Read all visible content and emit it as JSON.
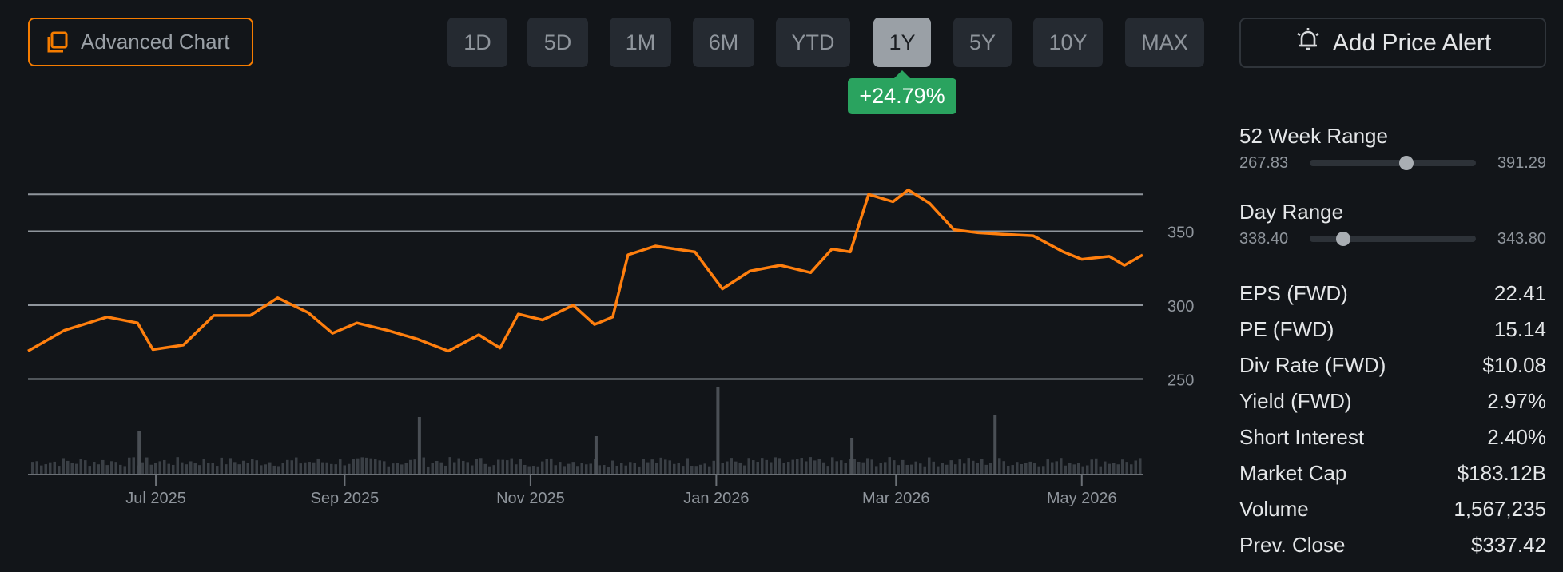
{
  "toolbar": {
    "advanced_chart_label": "Advanced Chart",
    "ranges": [
      {
        "label": "1D",
        "active": false
      },
      {
        "label": "5D",
        "active": false
      },
      {
        "label": "1M",
        "active": false
      },
      {
        "label": "6M",
        "active": false
      },
      {
        "label": "YTD",
        "active": false
      },
      {
        "label": "1Y",
        "active": true
      },
      {
        "label": "5Y",
        "active": false
      },
      {
        "label": "10Y",
        "active": false
      },
      {
        "label": "MAX",
        "active": false
      }
    ],
    "change_badge": "+24.79%",
    "add_alert_label": "Add Price Alert"
  },
  "colors": {
    "accent": "#f57c00",
    "line": "#ff7f0e",
    "positive": "#2aa35f",
    "background": "#121519",
    "volume": "#3a3f45",
    "grid": "#8f959c"
  },
  "icons": {
    "advanced_chart": "layers-icon",
    "alert": "alarm-bell-icon"
  },
  "stats": {
    "week52": {
      "title": "52 Week Range",
      "low": "267.83",
      "high": "391.29",
      "current_fraction": 0.58
    },
    "day": {
      "title": "Day Range",
      "low": "338.40",
      "high": "343.80",
      "current_fraction": 0.2
    },
    "rows": [
      {
        "label": "EPS (FWD)",
        "value": "22.41"
      },
      {
        "label": "PE (FWD)",
        "value": "15.14"
      },
      {
        "label": "Div Rate (FWD)",
        "value": "$10.08"
      },
      {
        "label": "Yield (FWD)",
        "value": "2.97%"
      },
      {
        "label": "Short Interest",
        "value": "2.40%"
      },
      {
        "label": "Market Cap",
        "value": "$183.12B"
      },
      {
        "label": "Volume",
        "value": "1,567,235"
      },
      {
        "label": "Prev. Close",
        "value": "$337.42"
      }
    ]
  },
  "chart_data": {
    "type": "line",
    "x_labels": [
      "Jul 2025",
      "Sep 2025",
      "Nov 2025",
      "Jan 2026",
      "Mar 2026",
      "May 2026"
    ],
    "x_label_positions": [
      "2025-07-01",
      "2025-09-01",
      "2025-11-01",
      "2026-01-01",
      "2026-03-01",
      "2026-05-01"
    ],
    "x_range": [
      "2025-05-20",
      "2026-05-21"
    ],
    "y_ticks": [
      250,
      300,
      350
    ],
    "ylim": [
      225,
      375
    ],
    "grid": true,
    "price_series": [
      [
        "2025-05-20",
        269
      ],
      [
        "2025-06-01",
        283
      ],
      [
        "2025-06-15",
        292
      ],
      [
        "2025-06-25",
        288
      ],
      [
        "2025-06-30",
        270
      ],
      [
        "2025-07-10",
        273
      ],
      [
        "2025-07-20",
        293
      ],
      [
        "2025-08-01",
        293
      ],
      [
        "2025-08-10",
        305
      ],
      [
        "2025-08-20",
        295
      ],
      [
        "2025-08-28",
        281
      ],
      [
        "2025-09-05",
        288
      ],
      [
        "2025-09-15",
        283
      ],
      [
        "2025-09-25",
        277
      ],
      [
        "2025-10-05",
        269
      ],
      [
        "2025-10-15",
        280
      ],
      [
        "2025-10-22",
        271
      ],
      [
        "2025-10-28",
        294
      ],
      [
        "2025-11-05",
        290
      ],
      [
        "2025-11-15",
        300
      ],
      [
        "2025-11-22",
        287
      ],
      [
        "2025-11-28",
        292
      ],
      [
        "2025-12-03",
        334
      ],
      [
        "2025-12-12",
        340
      ],
      [
        "2025-12-25",
        336
      ],
      [
        "2026-01-03",
        311
      ],
      [
        "2026-01-12",
        323
      ],
      [
        "2026-01-22",
        327
      ],
      [
        "2026-02-01",
        322
      ],
      [
        "2026-02-08",
        338
      ],
      [
        "2026-02-14",
        336
      ],
      [
        "2026-02-20",
        375
      ],
      [
        "2026-02-28",
        370
      ],
      [
        "2026-03-05",
        378
      ],
      [
        "2026-03-12",
        369
      ],
      [
        "2026-03-20",
        351
      ],
      [
        "2026-03-28",
        349
      ],
      [
        "2026-04-05",
        348
      ],
      [
        "2026-04-15",
        347
      ],
      [
        "2026-04-25",
        336
      ],
      [
        "2026-05-01",
        331
      ],
      [
        "2026-05-10",
        333
      ],
      [
        "2026-05-15",
        327
      ],
      [
        "2026-05-21",
        334
      ]
    ],
    "volume_series": [
      [
        "2025-06-25",
        0.45
      ],
      [
        "2025-09-25",
        0.62
      ],
      [
        "2025-11-22",
        0.38
      ],
      [
        "2026-01-01",
        1.0
      ],
      [
        "2026-02-14",
        0.36
      ],
      [
        "2026-04-02",
        0.65
      ]
    ]
  }
}
